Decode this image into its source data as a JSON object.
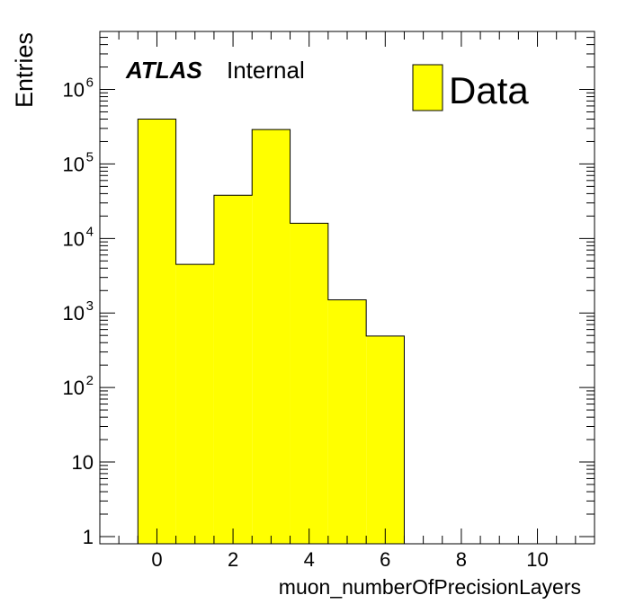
{
  "chart_data": {
    "type": "bar",
    "histogram": true,
    "x": [
      0,
      1,
      2,
      3,
      4,
      5,
      6
    ],
    "bin_width": 1,
    "values": [
      400000,
      4500,
      38000,
      290000,
      16000,
      1500,
      490
    ],
    "xlim": [
      -1.5,
      11.5
    ],
    "ylim": [
      0.8,
      6000000
    ],
    "yscale": "log",
    "xlabel": "muon_numberOfPrecisionLayers",
    "ylabel": "Entries",
    "x_ticks": [
      "0",
      "2",
      "4",
      "6",
      "8",
      "10"
    ],
    "x_tick_values": [
      0,
      2,
      4,
      6,
      8,
      10
    ],
    "y_ticks": [
      {
        "value": 1,
        "base": "1",
        "exp": ""
      },
      {
        "value": 10,
        "base": "10",
        "exp": ""
      },
      {
        "value": 100,
        "base": "10",
        "exp": "2"
      },
      {
        "value": 1000,
        "base": "10",
        "exp": "3"
      },
      {
        "value": 10000,
        "base": "10",
        "exp": "4"
      },
      {
        "value": 100000,
        "base": "10",
        "exp": "5"
      },
      {
        "value": 1000000,
        "base": "10",
        "exp": "6"
      }
    ],
    "series": [
      {
        "name": "Data",
        "values": [
          400000,
          4500,
          38000,
          290000,
          16000,
          1500,
          490
        ]
      }
    ],
    "fill_color": "#ffff00",
    "legend_position": "top-right",
    "grid": false
  },
  "annotation": {
    "experiment": "ATLAS",
    "status": "Internal"
  }
}
